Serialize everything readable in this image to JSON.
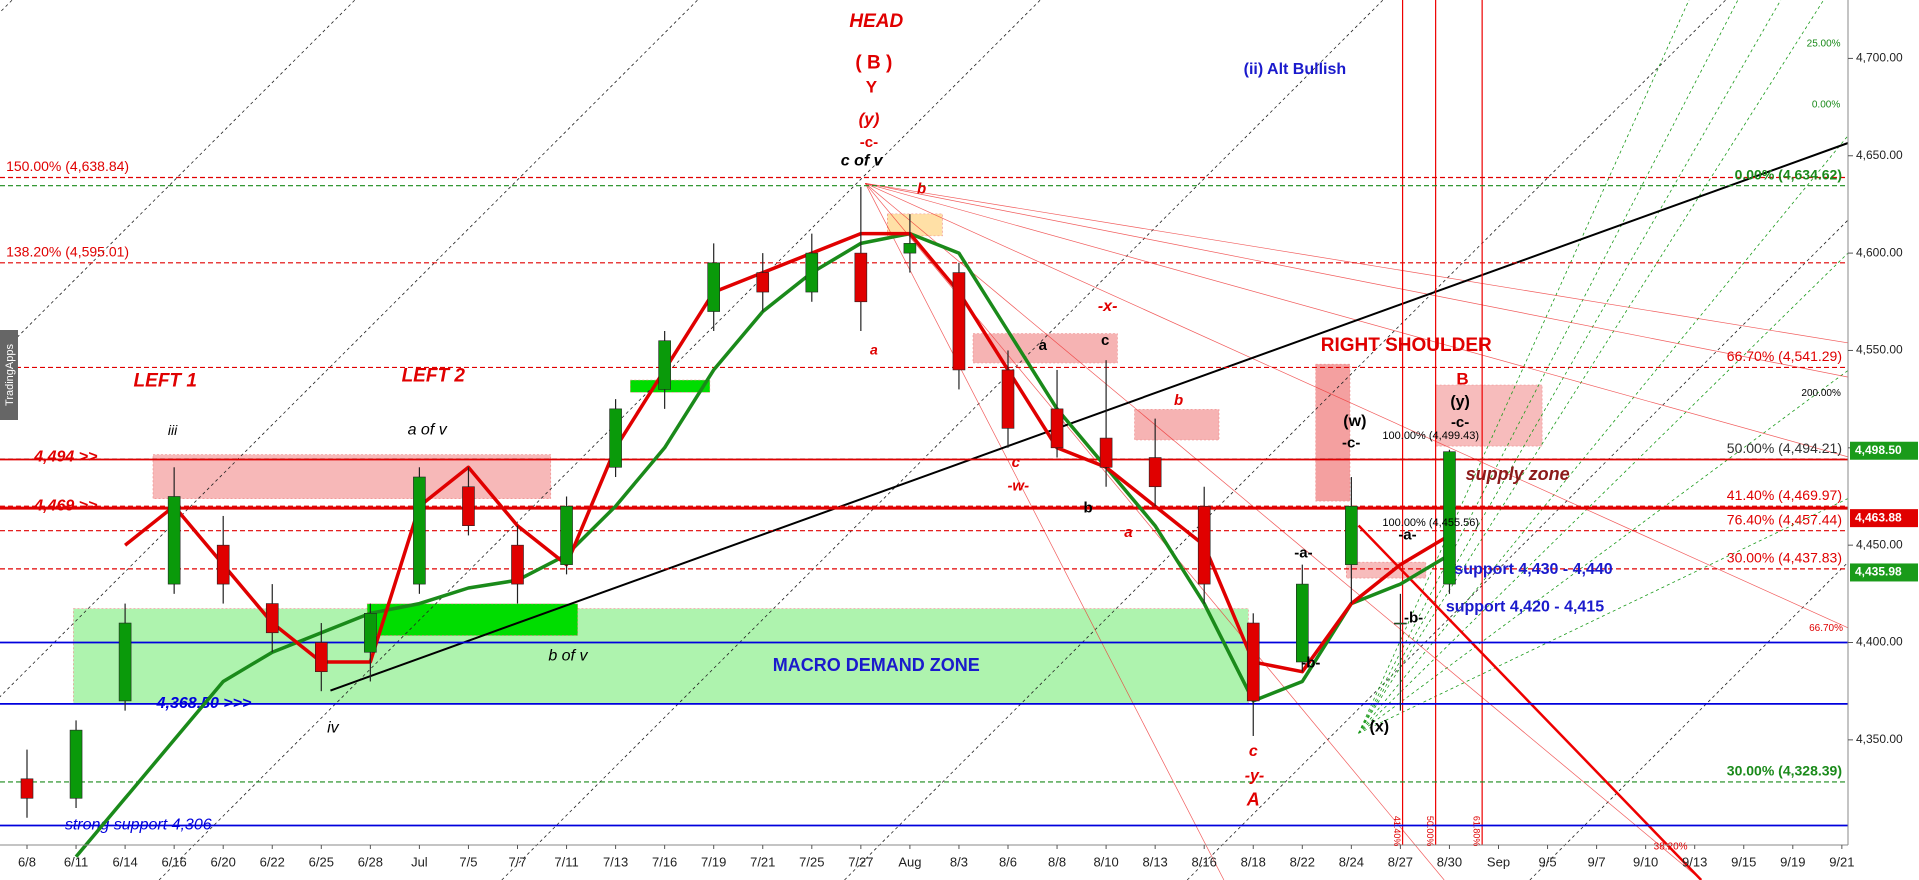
{
  "chart_data": {
    "type": "candlestick",
    "categories": [
      "6/8",
      "6/11",
      "6/14",
      "6/16",
      "6/20",
      "6/22",
      "6/25",
      "6/28",
      "Jul",
      "7/5",
      "7/7",
      "7/11",
      "7/13",
      "7/16",
      "7/19",
      "7/21",
      "7/25",
      "7/27",
      "Aug",
      "8/3",
      "8/6",
      "8/8",
      "8/10",
      "8/13",
      "8/16",
      "8/18",
      "8/22",
      "8/24",
      "8/27",
      "8/30",
      "Sep",
      "9/5",
      "9/7",
      "9/10",
      "9/13",
      "9/15",
      "9/19",
      "9/21"
    ],
    "open": [
      4330,
      4320,
      4370,
      4430,
      4450,
      4420,
      4400,
      4395,
      4430,
      4480,
      4450,
      4440,
      4490,
      4530,
      4570,
      4590,
      4580,
      4600,
      4600,
      4590,
      4540,
      4520,
      4505,
      4495,
      4470,
      4410,
      4390,
      4440,
      4410,
      4430,
      null,
      null,
      null,
      null,
      null,
      null,
      null,
      null
    ],
    "high": [
      4345,
      4360,
      4420,
      4490,
      4465,
      4430,
      4410,
      4420,
      4490,
      4490,
      4460,
      4475,
      4525,
      4560,
      4605,
      4600,
      4610,
      4634,
      4620,
      4595,
      4550,
      4540,
      4545,
      4515,
      4480,
      4415,
      4440,
      4485,
      4425,
      4499,
      null,
      null,
      null,
      null,
      null,
      null,
      null,
      null
    ],
    "low": [
      4310,
      4315,
      4365,
      4425,
      4420,
      4395,
      4375,
      4380,
      4425,
      4455,
      4420,
      4435,
      4485,
      4520,
      4560,
      4570,
      4575,
      4560,
      4590,
      4530,
      4500,
      4495,
      4480,
      4470,
      4420,
      4352,
      4385,
      4420,
      4365,
      4425,
      null,
      null,
      null,
      null,
      null,
      null,
      null,
      null
    ],
    "close": [
      4320,
      4355,
      4410,
      4475,
      4430,
      4405,
      4385,
      4415,
      4485,
      4460,
      4430,
      4470,
      4520,
      4555,
      4595,
      4580,
      4600,
      4575,
      4605,
      4540,
      4510,
      4500,
      4490,
      4480,
      4430,
      4370,
      4430,
      4470,
      4410,
      4498,
      null,
      null,
      null,
      null,
      null,
      null,
      null,
      null
    ],
    "up_color": "#0a9a0a",
    "down_color": "#e00000",
    "series": [
      {
        "color": "#1a8a1a",
        "values": [
          null,
          4290,
          4320,
          4350,
          4380,
          4395,
          4405,
          4415,
          4420,
          4428,
          4432,
          4445,
          4470,
          4500,
          4540,
          4570,
          4590,
          4605,
          4610,
          4600,
          4560,
          4520,
          4490,
          4460,
          4420,
          4370,
          4380,
          4420,
          4430,
          4445,
          null,
          null,
          null,
          null,
          null,
          null,
          null,
          null
        ]
      },
      {
        "color": "#e00000",
        "values": [
          null,
          null,
          4450,
          4470,
          4440,
          4410,
          4390,
          4390,
          4470,
          4490,
          4460,
          4440,
          4500,
          4540,
          4580,
          4590,
          4600,
          4610,
          4610,
          4580,
          4540,
          4500,
          4490,
          4470,
          4450,
          4390,
          4385,
          4420,
          4440,
          4455,
          null,
          null,
          null,
          null,
          null,
          null,
          null,
          null
        ]
      }
    ],
    "ylim": [
      4296,
      4730
    ],
    "yticks": [
      {
        "value": 4350,
        "label": "4,350.00"
      },
      {
        "value": 4400,
        "label": "4,400.00"
      },
      {
        "value": 4450,
        "label": "4,450.00"
      },
      {
        "value": 4500,
        "label": "4,500.00"
      },
      {
        "value": 4550,
        "label": "4,550.00"
      },
      {
        "value": 4600,
        "label": "4,600.00"
      },
      {
        "value": 4650,
        "label": "4,650.00"
      },
      {
        "value": 4700,
        "label": "4,700.00"
      }
    ],
    "levels": [
      {
        "label": "150.00% (4,638.84)",
        "value": 4638.84,
        "color": "#e00000",
        "dash": true,
        "side": "left"
      },
      {
        "label": "138.20% (4,595.01)",
        "value": 4595.01,
        "color": "#e00000",
        "dash": true,
        "side": "left"
      },
      {
        "label": "0.00% (4,634.62)",
        "value": 4634.62,
        "color": "#1a8a1a",
        "dash": true,
        "side": "right"
      },
      {
        "label": "66.70% (4,541.29)",
        "value": 4541.29,
        "color": "#e00000",
        "dash": true,
        "side": "right"
      },
      {
        "label": "50.00% (4,494.21)",
        "value": 4494.21,
        "color": "#333333",
        "dash": true,
        "side": "right"
      },
      {
        "label": "41.40% (4,469.97)",
        "value": 4469.97,
        "color": "#e00000",
        "dash": true,
        "side": "right"
      },
      {
        "label": "76.40% (4,457.44)",
        "value": 4457.44,
        "color": "#e00000",
        "dash": true,
        "side": "right"
      },
      {
        "label": "30.00% (4,437.83)",
        "value": 4437.83,
        "color": "#e00000",
        "dash": true,
        "side": "right"
      },
      {
        "label": "30.00% (4,328.39)",
        "value": 4328.39,
        "color": "#1a8a1a",
        "dash": true,
        "side": "right"
      },
      {
        "label": "4,494 >>",
        "value": 4494,
        "color": "#e00000",
        "dash": false,
        "side": "left"
      },
      {
        "label": "4,469 >>",
        "value": 4469,
        "color": "#e00000",
        "dash": false,
        "side": "left"
      },
      {
        "label": "4,368.50 >>>",
        "value": 4368.5,
        "color": "#0000dd",
        "dash": false,
        "side": "left"
      },
      {
        "value": 4400,
        "color": "#0000dd",
        "dash": false,
        "side": "left"
      },
      {
        "label": "strong support 4,306",
        "value": 4306,
        "color": "#0000dd",
        "dash": false,
        "side": "left"
      }
    ],
    "price_badges": [
      {
        "label": "4,498.50",
        "value": 4498.5,
        "color": "#1a9b1a"
      },
      {
        "label": "4,463.88",
        "value": 4463.88,
        "color": "#e00000"
      },
      {
        "label": "4,435.98",
        "value": 4435.98,
        "color": "#1a9b1a"
      }
    ],
    "annotations": [
      {
        "text": "HEAD",
        "color": "#e00000"
      },
      {
        "text": "( B )",
        "color": "#e00000"
      },
      {
        "text": "Y",
        "color": "#e00000"
      },
      {
        "text": "(y)",
        "color": "#e00000"
      },
      {
        "text": "-c-",
        "color": "#e00000"
      },
      {
        "text": "c of v",
        "color": "#000000"
      },
      {
        "text": "(ii) Alt Bullish",
        "color": "#1a1acc"
      },
      {
        "text": "LEFT 1",
        "color": "#e00000"
      },
      {
        "text": "LEFT 2",
        "color": "#e00000"
      },
      {
        "text": "iii",
        "color": "#000000"
      },
      {
        "text": "a of v",
        "color": "#000000"
      },
      {
        "text": "iv",
        "color": "#000000"
      },
      {
        "text": "b of v",
        "color": "#000000"
      },
      {
        "text": "MACRO DEMAND ZONE",
        "color": "#1a1acc"
      },
      {
        "text": "RIGHT SHOULDER",
        "color": "#e00000"
      },
      {
        "text": "B",
        "color": "#e00000"
      },
      {
        "text": "(y)",
        "color": "#000000"
      },
      {
        "text": "-c-",
        "color": "#000000"
      },
      {
        "text": "supply zone",
        "color": "#8b1a1a"
      },
      {
        "text": "(w)",
        "color": "#000000"
      },
      {
        "text": "-c-",
        "color": "#000000"
      },
      {
        "text": "support  4,430 - 4,440",
        "color": "#1a1acc"
      },
      {
        "text": "support 4,420 - 4,415",
        "color": "#1a1acc"
      },
      {
        "text": "-x-",
        "color": "#e00000"
      },
      {
        "text": "a",
        "color": "#e00000"
      },
      {
        "text": "b",
        "color": "#e00000"
      },
      {
        "text": "a",
        "color": "#000000"
      },
      {
        "text": "c",
        "color": "#000000"
      },
      {
        "text": "b",
        "color": "#e00000"
      },
      {
        "text": "c",
        "color": "#e00000"
      },
      {
        "text": "-w-",
        "color": "#e00000"
      },
      {
        "text": "b",
        "color": "#000000"
      },
      {
        "text": "a",
        "color": "#e00000"
      },
      {
        "text": "-a-",
        "color": "#000000"
      },
      {
        "text": "-b-",
        "color": "#000000"
      },
      {
        "text": "-b-",
        "color": "#000000"
      },
      {
        "text": "c",
        "color": "#e00000"
      },
      {
        "text": "-y-",
        "color": "#e00000"
      },
      {
        "text": "A",
        "color": "#e00000"
      },
      {
        "text": "(x)",
        "color": "#000000"
      },
      {
        "text": "100.00% (4,499.43)",
        "color": "#000000"
      },
      {
        "text": "100.00% (4,455.56)",
        "color": "#000000"
      },
      {
        "text": "-a-",
        "color": "#000000"
      },
      {
        "text": "25.00%",
        "color": "#1a8a1a"
      },
      {
        "text": "0.00%",
        "color": "#1a8a1a"
      },
      {
        "text": "200.00%",
        "color": "#000000"
      },
      {
        "text": "66.70%",
        "color": "#e00000"
      },
      {
        "text": "38.20%",
        "color": "#e00000"
      },
      {
        "text": "41.40%",
        "color": "#e00000"
      },
      {
        "text": "50.00%",
        "color": "#e00000"
      },
      {
        "text": "61.80%",
        "color": "#e00000"
      }
    ],
    "watermark": "TradingApps"
  }
}
